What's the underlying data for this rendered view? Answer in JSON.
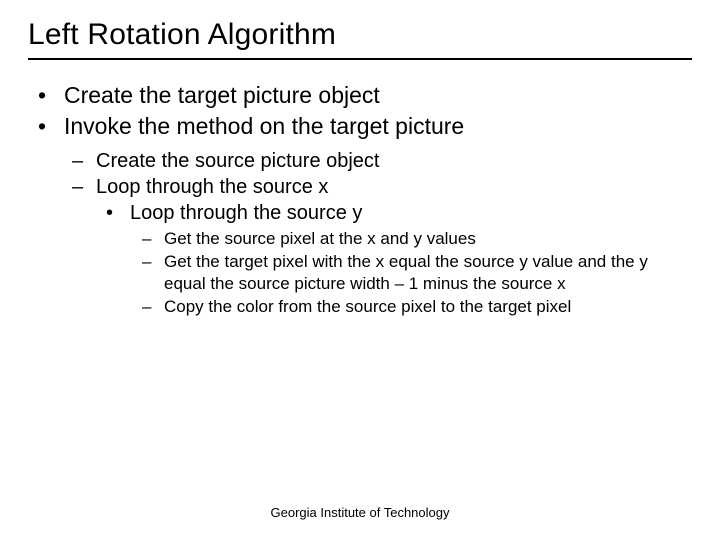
{
  "title": "Left Rotation Algorithm",
  "bullets": {
    "l1_0": "Create the target picture object",
    "l1_1": "Invoke the method on the target picture",
    "l2_0": "Create the source picture object",
    "l2_1": "Loop through the source x",
    "l3_0": "Loop through the source y",
    "l4_0": "Get the source pixel at the x and y values",
    "l4_1": "Get the target pixel with the x equal the source y value and the y equal the source picture width – 1 minus the source x",
    "l4_2": "Copy the color from the source pixel to the target pixel"
  },
  "footer": "Georgia Institute of Technology",
  "glyphs": {
    "dot": "•",
    "dash": "–"
  }
}
